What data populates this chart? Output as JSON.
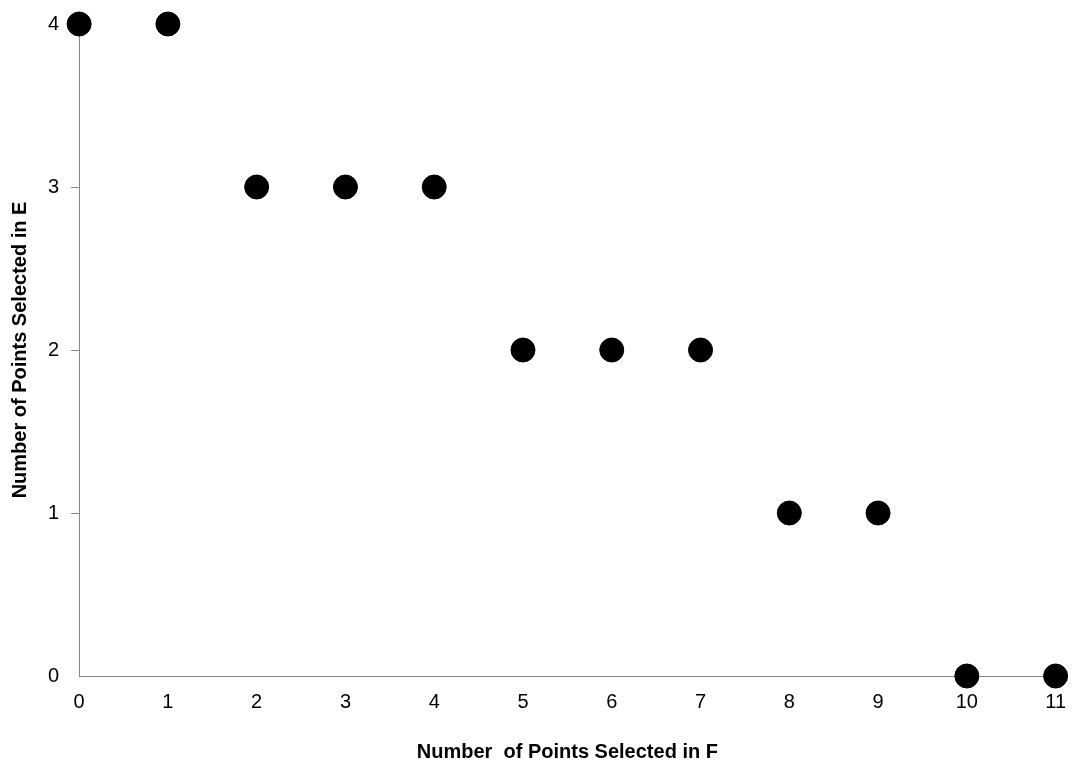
{
  "chart_data": {
    "type": "scatter",
    "xlabel": "Number  of Points Selected in F",
    "ylabel": "Number of Points Selected in E",
    "x": [
      0,
      1,
      2,
      3,
      4,
      5,
      6,
      7,
      8,
      9,
      10,
      11
    ],
    "series": [
      {
        "color": "#000000",
        "values": [
          4,
          4,
          3,
          3,
          3,
          2,
          2,
          2,
          1,
          1,
          0,
          0
        ]
      }
    ],
    "xlim": [
      0,
      11
    ],
    "xticks": [
      0,
      1,
      2,
      3,
      4,
      5,
      6,
      7,
      8,
      9,
      10,
      11
    ],
    "ylim": [
      0,
      4
    ],
    "yticks": [
      0,
      1,
      2,
      3,
      4
    ],
    "grid": false,
    "legend": false,
    "marker": "circle"
  }
}
